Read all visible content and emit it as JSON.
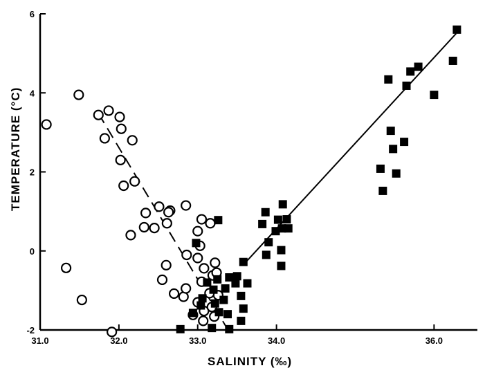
{
  "chart_data": {
    "type": "scatter",
    "title": "",
    "xlabel": "SALINITY   (‰)",
    "ylabel": "TEMPERATURE (°C)",
    "xlim": [
      31.0,
      36.55
    ],
    "ylim": [
      -2.0,
      6.0
    ],
    "x_ticks": [
      31.0,
      32.0,
      33.0,
      34.0,
      36.0
    ],
    "x_tick_labels": [
      "31.0",
      "32.0",
      "33.0",
      "34.0",
      "36.0"
    ],
    "y_ticks": [
      6,
      4,
      2,
      0,
      -2
    ],
    "y_tick_labels": [
      "6",
      "4",
      "2",
      "0",
      "-2"
    ],
    "grid": false,
    "series": [
      {
        "marker": "open-circle",
        "color": "#000000",
        "points": [
          [
            31.08,
            3.2
          ],
          [
            31.33,
            -0.43
          ],
          [
            31.49,
            3.95
          ],
          [
            31.53,
            -1.24
          ],
          [
            31.74,
            3.44
          ],
          [
            31.87,
            3.55
          ],
          [
            31.82,
            2.85
          ],
          [
            32.01,
            3.39
          ],
          [
            32.03,
            3.09
          ],
          [
            31.91,
            -2.05
          ],
          [
            32.06,
            1.65
          ],
          [
            32.17,
            2.8
          ],
          [
            32.02,
            2.3
          ],
          [
            32.2,
            1.76
          ],
          [
            32.15,
            0.4
          ],
          [
            32.32,
            0.6
          ],
          [
            32.34,
            0.96
          ],
          [
            32.45,
            0.58
          ],
          [
            32.51,
            1.12
          ],
          [
            32.65,
            1.02
          ],
          [
            32.63,
            0.98
          ],
          [
            32.61,
            0.7
          ],
          [
            32.55,
            -0.73
          ],
          [
            32.6,
            -0.36
          ],
          [
            32.7,
            -1.08
          ],
          [
            32.85,
            1.15
          ],
          [
            32.86,
            -0.1
          ],
          [
            32.82,
            -1.16
          ],
          [
            32.85,
            -0.95
          ],
          [
            33.05,
            0.8
          ],
          [
            33.16,
            0.7
          ],
          [
            33.0,
            0.5
          ],
          [
            33.03,
            0.13
          ],
          [
            33.0,
            -0.18
          ],
          [
            33.08,
            -0.44
          ],
          [
            33.19,
            -0.62
          ],
          [
            33.15,
            -1.07
          ],
          [
            33.22,
            -0.3
          ],
          [
            33.24,
            -0.55
          ],
          [
            33.26,
            -1.12
          ],
          [
            33.05,
            -0.78
          ],
          [
            33.0,
            -1.3
          ],
          [
            33.08,
            -1.52
          ],
          [
            33.07,
            -1.77
          ],
          [
            33.18,
            -1.42
          ],
          [
            33.21,
            -1.66
          ],
          [
            32.94,
            -1.62
          ]
        ]
      },
      {
        "marker": "filled-square",
        "color": "#000000",
        "points": [
          [
            36.29,
            5.6
          ],
          [
            36.24,
            4.81
          ],
          [
            35.8,
            4.66
          ],
          [
            35.7,
            4.54
          ],
          [
            35.65,
            4.18
          ],
          [
            36.0,
            3.95
          ],
          [
            35.42,
            4.34
          ],
          [
            35.45,
            3.04
          ],
          [
            35.48,
            2.58
          ],
          [
            35.52,
            1.96
          ],
          [
            35.62,
            2.76
          ],
          [
            35.32,
            2.08
          ],
          [
            35.35,
            1.52
          ],
          [
            34.08,
            1.18
          ],
          [
            34.13,
            0.8
          ],
          [
            34.07,
            0.57
          ],
          [
            34.02,
            0.79
          ],
          [
            34.15,
            0.57
          ],
          [
            33.99,
            0.5
          ],
          [
            33.86,
            0.98
          ],
          [
            33.82,
            0.68
          ],
          [
            33.9,
            0.22
          ],
          [
            33.87,
            -0.1
          ],
          [
            34.06,
            0.02
          ],
          [
            34.06,
            -0.38
          ],
          [
            33.58,
            -0.28
          ],
          [
            33.5,
            -0.64
          ],
          [
            33.48,
            -0.82
          ],
          [
            33.63,
            -0.82
          ],
          [
            33.55,
            -1.14
          ],
          [
            33.58,
            -1.46
          ],
          [
            33.55,
            -1.77
          ],
          [
            33.4,
            -0.67
          ],
          [
            33.35,
            -0.95
          ],
          [
            33.33,
            -1.24
          ],
          [
            33.38,
            -1.6
          ],
          [
            33.25,
            -0.72
          ],
          [
            33.2,
            -0.98
          ],
          [
            33.22,
            -1.33
          ],
          [
            33.27,
            -1.55
          ],
          [
            33.18,
            -1.95
          ],
          [
            33.4,
            -1.98
          ],
          [
            33.12,
            -0.8
          ],
          [
            33.06,
            -1.2
          ],
          [
            33.04,
            -1.38
          ],
          [
            32.94,
            -1.57
          ],
          [
            32.98,
            0.2
          ],
          [
            33.26,
            0.78
          ],
          [
            32.78,
            -1.98
          ]
        ]
      }
    ],
    "fit_lines": [
      {
        "style": "dashed",
        "color": "#000000",
        "points": [
          [
            31.74,
            3.48
          ],
          [
            33.4,
            -2.05
          ]
        ]
      },
      {
        "style": "solid",
        "color": "#000000",
        "points": [
          [
            33.58,
            -0.35
          ],
          [
            36.28,
            5.5
          ]
        ]
      }
    ]
  }
}
